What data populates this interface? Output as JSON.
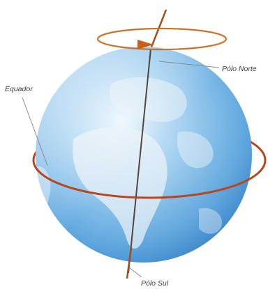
{
  "labels": {
    "north_pole": "Pólo Norte",
    "equator": "Equador",
    "south_pole": "Pólo Sul"
  },
  "colors": {
    "axis": "#a0501e",
    "equator_ring": "#b8461c",
    "rotation_arrow": "#c8732c",
    "ocean_light": "#d8ecf9",
    "ocean_dark": "#2f7fc8",
    "land": "#e9f2f8",
    "leader_line": "#8a8a8a",
    "label_text": "#3a3a3a"
  },
  "icons": {
    "rotation": "rotation-arrow-icon",
    "globe": "earth-globe-icon"
  }
}
